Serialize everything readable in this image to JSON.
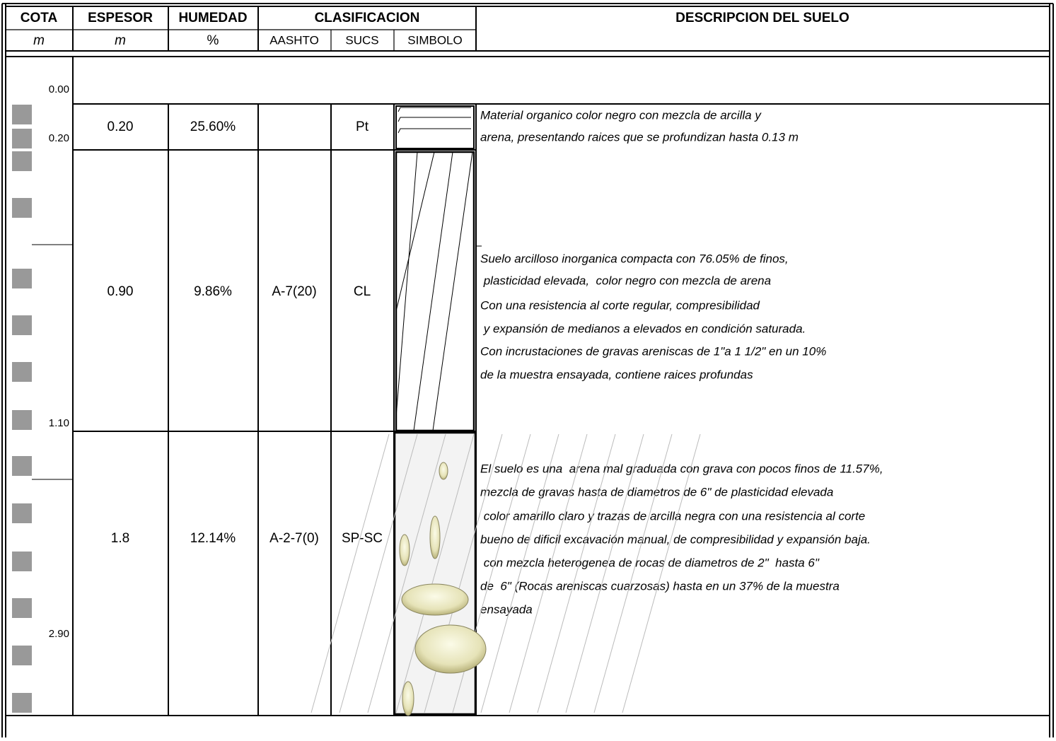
{
  "header": {
    "columns": [
      "COTA",
      "ESPESOR",
      "HUMEDAD",
      "CLASIFICACION",
      "DESCRIPCION DEL SUELO"
    ],
    "units": [
      "m",
      "m",
      "%"
    ],
    "subcolumns": [
      "AASHTO",
      "SUCS",
      "SIMBOLO"
    ]
  },
  "cota": [
    "0.00",
    "0.20",
    "1.10",
    "2.90"
  ],
  "layers": [
    {
      "espesor": "0.20",
      "humedad": "25.60%",
      "sucs": "Pt",
      "description": [
        "Material organico color negro con mezcla de arcilla y",
        "arena, presentando raices que se profundizan hasta 0.13 m"
      ]
    },
    {
      "espesor": "0.90",
      "humedad": "9.86%",
      "aashto": "A-7(20)",
      "sucs": "CL",
      "description": [
        "Suelo arcilloso inorganica compacta con 76.05% de finos,",
        " plasticidad elevada,  color negro con mezcla de arena",
        "Con una resistencia al corte regular, compresibilidad",
        " y expansión de medianos a elevados en condición saturada.",
        "Con incrustaciones de gravas areniscas de 1\"a 1 1/2\" en un 10%",
        "de la muestra ensayada, contiene raices profundas"
      ]
    },
    {
      "espesor": "1.8",
      "humedad": "12.14%",
      "aashto": "A-2-7(0)",
      "sucs": "SP-SC",
      "description": [
        "El suelo es una  arena mal graduada con grava con pocos finos de 11.57%,",
        "mezcla de gravas hasta de diametros de 6\" de plasticidad elevada",
        " color amarillo claro y trazas de arcilla negra con una resistencia al corte",
        "bueno de dificil excavación manual, de compresibilidad y expansión baja.",
        " con mezcla heterogenea de rocas de diametros de 2\"  hasta 6\"",
        "de  6\" (Rocas areniscas cuarzosas) hasta en un 37% de la muestra",
        "ensayada"
      ]
    }
  ]
}
